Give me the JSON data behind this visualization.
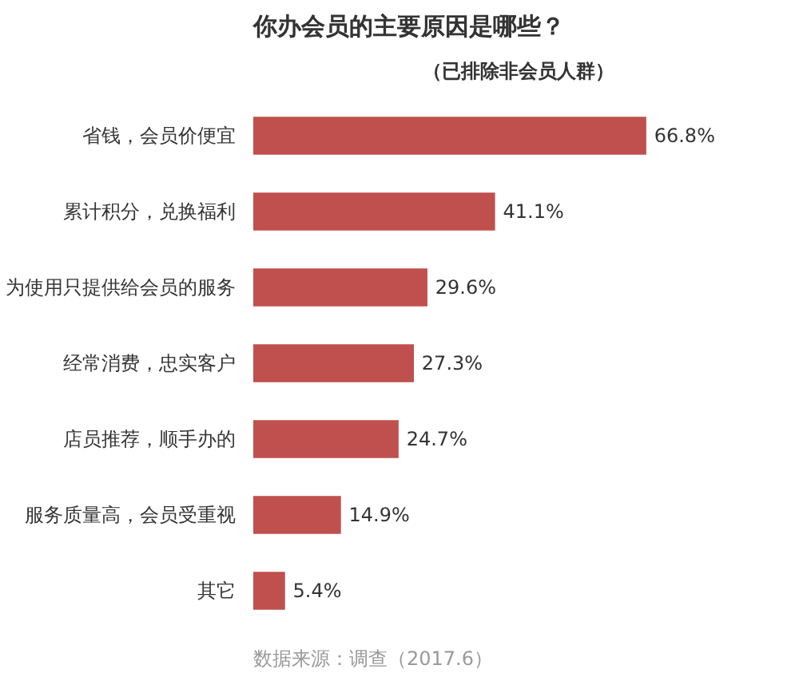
{
  "chart_data": {
    "type": "bar",
    "orientation": "horizontal",
    "title": "你办会员的主要原因是哪些？",
    "subtitle": "（已排除非会员人群）",
    "categories": [
      "省钱，会员价便宜",
      "累计积分，兑换福利",
      "为使用只提供给会员的服务",
      "经常消费，忠实客户",
      "店员推荐，顺手办的",
      "服务质量高，会员受重视",
      "其它"
    ],
    "values": [
      66.8,
      41.1,
      29.6,
      27.3,
      24.7,
      14.9,
      5.4
    ],
    "value_labels": [
      "66.8%",
      "41.1%",
      "29.6%",
      "27.3%",
      "24.7%",
      "14.9%",
      "5.4%"
    ],
    "color": "#c0504d",
    "grid": false,
    "annotations": [
      "数据来源：调查（2017.6）"
    ]
  }
}
